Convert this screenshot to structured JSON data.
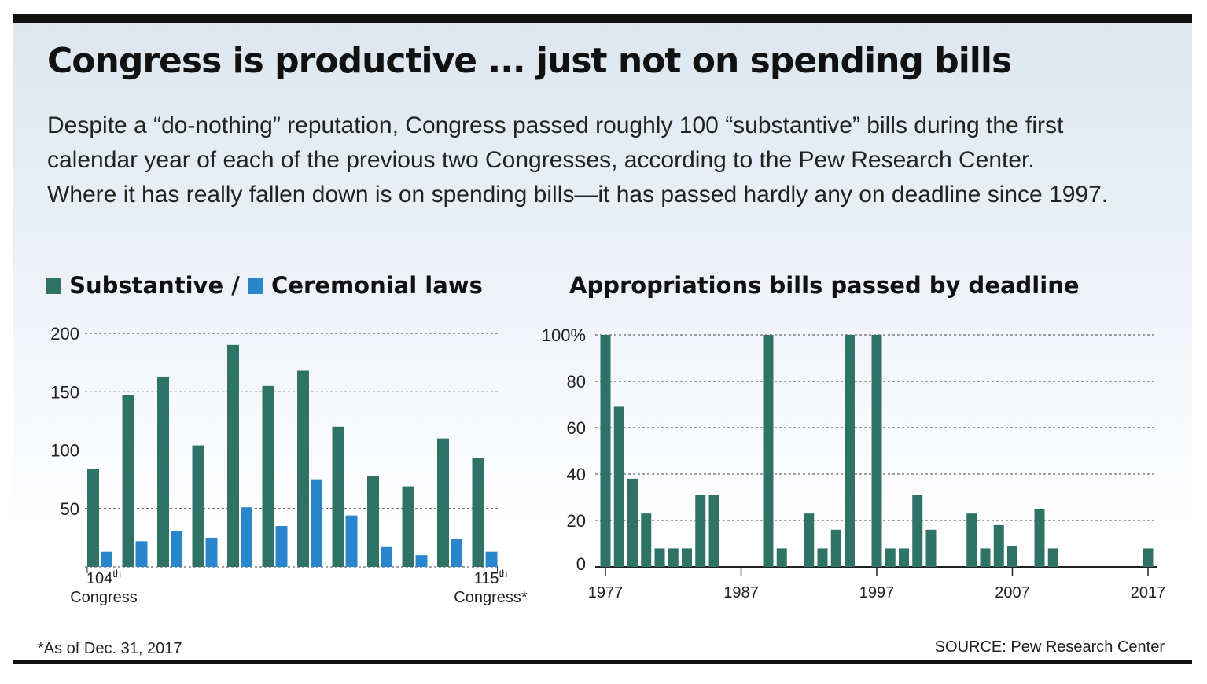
{
  "title": "Congress is productive ... just not on spending bills",
  "subtitle": [
    "Despite a “do-nothing” reputation, Congress passed roughly 100 “substantive” bills during the first",
    "calendar year of each of the previous two Congresses, according to the Pew Research Center.",
    "Where it has really fallen down is on spending bills—it has passed hardly any on deadline since 1997."
  ],
  "colors": {
    "substantive": "#2e7366",
    "ceremonial": "#2a86cc",
    "appropriations": "#2e7366"
  },
  "footnote": "*As of Dec. 31, 2017",
  "source": "SOURCE: Pew Research Center",
  "chart_data": [
    {
      "type": "bar",
      "legend": {
        "substantive": "Substantive /",
        "ceremonial": "Ceremonial laws",
        "placement": "top-left"
      },
      "first_label": {
        "num": "104",
        "sup": "th",
        "line2": "Congress"
      },
      "last_label": {
        "num": "115",
        "sup": "th",
        "line2": "Congress*"
      },
      "categories": [
        "104th",
        "105th",
        "106th",
        "107th",
        "108th",
        "109th",
        "110th",
        "111th",
        "112th",
        "113th",
        "114th",
        "115th"
      ],
      "series": [
        {
          "name": "Substantive",
          "values": [
            84,
            147,
            163,
            104,
            190,
            155,
            168,
            120,
            78,
            69,
            110,
            93
          ]
        },
        {
          "name": "Ceremonial",
          "values": [
            13,
            22,
            31,
            25,
            51,
            35,
            75,
            44,
            17,
            10,
            24,
            13
          ]
        }
      ],
      "yticks": [
        {
          "value": 50,
          "label": "50"
        },
        {
          "value": 100,
          "label": "100"
        },
        {
          "value": 150,
          "label": "150"
        },
        {
          "value": 200,
          "label": "200"
        }
      ],
      "ylim": [
        0,
        200
      ],
      "grid": true
    },
    {
      "type": "bar",
      "title": "Appropriations bills passed by deadline",
      "x": [
        1977,
        1978,
        1979,
        1980,
        1981,
        1982,
        1983,
        1984,
        1985,
        1986,
        1987,
        1988,
        1989,
        1990,
        1991,
        1992,
        1993,
        1994,
        1995,
        1996,
        1997,
        1998,
        1999,
        2000,
        2001,
        2002,
        2003,
        2004,
        2005,
        2006,
        2007,
        2008,
        2009,
        2010,
        2011,
        2012,
        2013,
        2014,
        2015,
        2016,
        2017
      ],
      "values": [
        100,
        69,
        38,
        23,
        8,
        8,
        8,
        31,
        31,
        0,
        0,
        0,
        100,
        8,
        0,
        23,
        8,
        16,
        100,
        0,
        100,
        8,
        8,
        31,
        16,
        0,
        0,
        23,
        8,
        18,
        9,
        0,
        25,
        8,
        0,
        0,
        0,
        0,
        0,
        0,
        8
      ],
      "xticks": [
        {
          "value": 1977,
          "label": "1977"
        },
        {
          "value": 1987,
          "label": "1987"
        },
        {
          "value": 1997,
          "label": "1997"
        },
        {
          "value": 2007,
          "label": "2007"
        },
        {
          "value": 2017,
          "label": "2017"
        }
      ],
      "yticks": [
        {
          "value": 0,
          "label": "0"
        },
        {
          "value": 20,
          "label": "20"
        },
        {
          "value": 40,
          "label": "40"
        },
        {
          "value": 60,
          "label": "60"
        },
        {
          "value": 80,
          "label": "80"
        },
        {
          "value": 100,
          "label": "100%"
        }
      ],
      "ylim": [
        0,
        100
      ],
      "grid": true
    }
  ]
}
